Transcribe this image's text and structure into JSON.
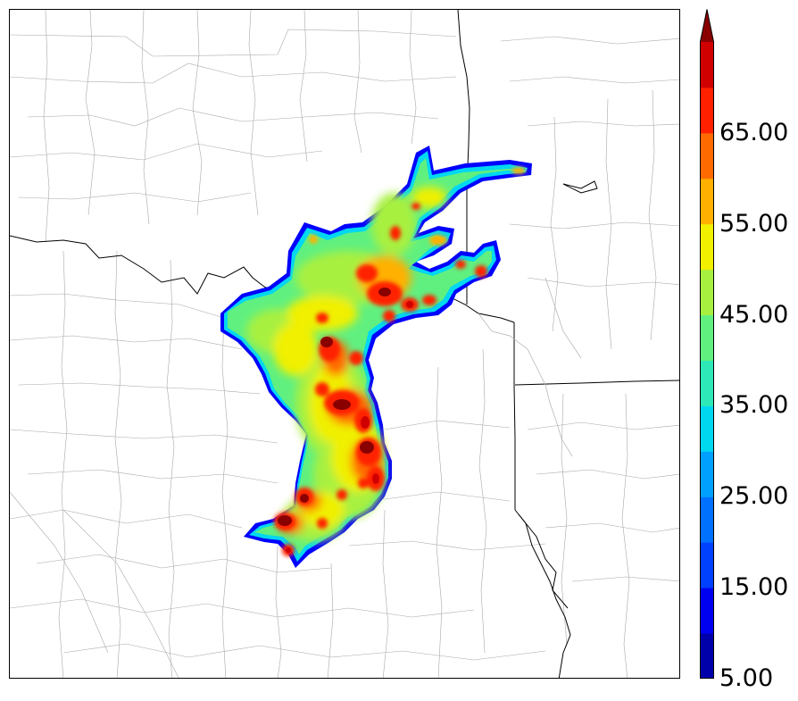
{
  "colorbar": {
    "colors": [
      "#0000aa",
      "#0000f0",
      "#0040ff",
      "#0070ff",
      "#00a0ff",
      "#00d8f0",
      "#2ee8b8",
      "#60f080",
      "#a8f040",
      "#f0f000",
      "#ffb000",
      "#ff6a00",
      "#ff2000",
      "#d00000",
      "#8a0000"
    ],
    "labels": [
      "65.00",
      "55.00",
      "45.00",
      "35.00",
      "25.00",
      "15.00",
      "5.00"
    ],
    "label_values": [
      65,
      55,
      45,
      35,
      25,
      15,
      5
    ],
    "min": 5,
    "max": 75,
    "extend": "max"
  },
  "map": {
    "features": [
      "county-lines",
      "state-lines",
      "rivers",
      "reflectivity-swath"
    ]
  }
}
